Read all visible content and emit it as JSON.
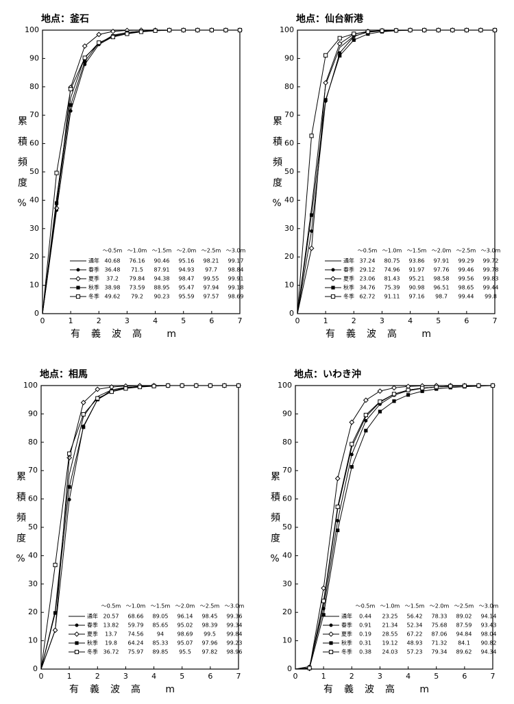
{
  "chart_data": [
    {
      "type": "line",
      "title": "地点：釜石",
      "y_label": "累積頻度%",
      "x_label": "有義波高 m",
      "x": [
        0,
        0.5,
        1,
        1.5,
        2,
        2.5,
        3,
        3.5,
        4,
        4.5,
        5,
        5.5,
        6,
        6.5,
        7
      ],
      "xlim": [
        0,
        7
      ],
      "ylim": [
        0,
        100
      ],
      "xticks": [
        0,
        1,
        2,
        3,
        4,
        5,
        6,
        7
      ],
      "yticks": [
        0,
        10,
        20,
        30,
        40,
        50,
        60,
        70,
        80,
        90,
        100
      ],
      "table_columns": [
        "～0.5m",
        "～1.0m",
        "～1.5m",
        "～2.0m",
        "～2.5m",
        "～3.0m"
      ],
      "series": [
        {
          "name": "通年",
          "color": "#000",
          "marker": "none",
          "values": [
            0,
            40.68,
            76.16,
            90.46,
            95.16,
            98.21,
            99.17,
            99.6,
            99.9,
            100,
            100,
            100,
            100,
            100,
            100
          ]
        },
        {
          "name": "春季",
          "color": "#000",
          "marker": "circle",
          "values": [
            0,
            36.48,
            71.5,
            87.91,
            94.93,
            97.7,
            98.84,
            99.5,
            99.8,
            100,
            100,
            100,
            100,
            100,
            100
          ]
        },
        {
          "name": "夏季",
          "color": "#000",
          "marker": "diamond",
          "values": [
            0,
            37.2,
            79.84,
            94.38,
            98.47,
            99.55,
            99.91,
            100,
            100,
            100,
            100,
            100,
            100,
            100,
            100
          ]
        },
        {
          "name": "秋季",
          "color": "#000",
          "marker": "square",
          "values": [
            0,
            38.98,
            73.59,
            88.95,
            95.47,
            97.94,
            99.18,
            99.6,
            99.9,
            100,
            100,
            100,
            100,
            100,
            100
          ]
        },
        {
          "name": "冬季",
          "color": "#000",
          "marker": "square-open",
          "values": [
            0,
            49.62,
            79.2,
            90.23,
            95.59,
            97.57,
            98.69,
            99.4,
            99.8,
            100,
            100,
            100,
            100,
            100,
            100
          ]
        }
      ]
    },
    {
      "type": "line",
      "title": "地点：仙台新港",
      "y_label": "累積頻度%",
      "x_label": "有義波高 m",
      "x": [
        0,
        0.5,
        1,
        1.5,
        2,
        2.5,
        3,
        3.5,
        4,
        4.5,
        5,
        5.5,
        6,
        6.5,
        7
      ],
      "xlim": [
        0,
        7
      ],
      "ylim": [
        0,
        100
      ],
      "xticks": [
        0,
        1,
        2,
        3,
        4,
        5,
        6,
        7
      ],
      "yticks": [
        0,
        10,
        20,
        30,
        40,
        50,
        60,
        70,
        80,
        90,
        100
      ],
      "table_columns": [
        "～0.5m",
        "～1.0m",
        "～1.5m",
        "～2.0m",
        "～2.5m",
        "～3.0m"
      ],
      "series": [
        {
          "name": "通年",
          "color": "#000",
          "marker": "none",
          "values": [
            0,
            37.24,
            80.75,
            93.86,
            97.91,
            99.29,
            99.72,
            99.9,
            100,
            100,
            100,
            100,
            100,
            100,
            100
          ]
        },
        {
          "name": "春季",
          "color": "#000",
          "marker": "circle",
          "values": [
            0,
            29.12,
            74.96,
            91.97,
            97.76,
            99.46,
            99.78,
            99.9,
            100,
            100,
            100,
            100,
            100,
            100,
            100
          ]
        },
        {
          "name": "夏季",
          "color": "#000",
          "marker": "diamond",
          "values": [
            0,
            23.06,
            81.43,
            95.21,
            98.58,
            99.56,
            99.83,
            99.9,
            100,
            100,
            100,
            100,
            100,
            100,
            100
          ]
        },
        {
          "name": "秋季",
          "color": "#000",
          "marker": "square",
          "values": [
            0,
            34.76,
            75.39,
            90.98,
            96.51,
            98.65,
            99.44,
            99.8,
            100,
            100,
            100,
            100,
            100,
            100,
            100
          ]
        },
        {
          "name": "冬季",
          "color": "#000",
          "marker": "square-open",
          "values": [
            0,
            62.72,
            91.11,
            97.16,
            98.7,
            99.44,
            99.8,
            99.9,
            100,
            100,
            100,
            100,
            100,
            100,
            100
          ]
        }
      ]
    },
    {
      "type": "line",
      "title": "地点：相馬",
      "y_label": "累積頻度%",
      "x_label": "有義波高 m",
      "x": [
        0,
        0.5,
        1,
        1.5,
        2,
        2.5,
        3,
        3.5,
        4,
        4.5,
        5,
        5.5,
        6,
        6.5,
        7
      ],
      "xlim": [
        0,
        7
      ],
      "ylim": [
        0,
        100
      ],
      "xticks": [
        0,
        1,
        2,
        3,
        4,
        5,
        6,
        7
      ],
      "yticks": [
        0,
        10,
        20,
        30,
        40,
        50,
        60,
        70,
        80,
        90,
        100
      ],
      "table_columns": [
        "～0.5m",
        "～1.0m",
        "～1.5m",
        "～2.0m",
        "～2.5m",
        "～3.0m"
      ],
      "series": [
        {
          "name": "通年",
          "color": "#000",
          "marker": "none",
          "values": [
            0,
            20.57,
            68.66,
            89.05,
            96.14,
            98.45,
            99.36,
            99.7,
            99.9,
            100,
            100,
            100,
            100,
            100,
            100
          ]
        },
        {
          "name": "春季",
          "color": "#000",
          "marker": "circle",
          "values": [
            0,
            13.82,
            59.79,
            85.65,
            95.02,
            98.39,
            99.34,
            99.7,
            99.9,
            100,
            100,
            100,
            100,
            100,
            100
          ]
        },
        {
          "name": "夏季",
          "color": "#000",
          "marker": "diamond",
          "values": [
            0,
            13.7,
            74.56,
            94.0,
            98.69,
            99.5,
            99.84,
            100,
            100,
            100,
            100,
            100,
            100,
            100,
            100
          ]
        },
        {
          "name": "秋季",
          "color": "#000",
          "marker": "square",
          "values": [
            0,
            19.8,
            64.24,
            85.33,
            95.07,
            97.96,
            99.23,
            99.6,
            99.9,
            100,
            100,
            100,
            100,
            100,
            100
          ]
        },
        {
          "name": "冬季",
          "color": "#000",
          "marker": "square-open",
          "values": [
            0,
            36.72,
            75.97,
            89.85,
            95.5,
            97.82,
            98.96,
            99.5,
            99.8,
            100,
            100,
            100,
            100,
            100,
            100
          ]
        }
      ]
    },
    {
      "type": "line",
      "title": "地点：いわき沖",
      "y_label": "累積頻度%",
      "x_label": "有義波高 m",
      "x": [
        0,
        0.5,
        1,
        1.5,
        2,
        2.5,
        3,
        3.5,
        4,
        4.5,
        5,
        5.5,
        6,
        6.5,
        7
      ],
      "xlim": [
        0,
        7
      ],
      "ylim": [
        0,
        100
      ],
      "xticks": [
        0,
        1,
        2,
        3,
        4,
        5,
        6,
        7
      ],
      "yticks": [
        0,
        10,
        20,
        30,
        40,
        50,
        60,
        70,
        80,
        90,
        100
      ],
      "table_columns": [
        "～0.5m",
        "～1.0m",
        "～1.5m",
        "～2.0m",
        "～2.5m",
        "～3.0m"
      ],
      "series": [
        {
          "name": "通年",
          "color": "#000",
          "marker": "none",
          "values": [
            0,
            0.44,
            23.25,
            56.42,
            78.33,
            89.02,
            94.14,
            97.0,
            98.4,
            99.1,
            99.5,
            99.8,
            99.9,
            100,
            100
          ]
        },
        {
          "name": "春季",
          "color": "#000",
          "marker": "circle",
          "values": [
            0,
            0.91,
            21.34,
            52.34,
            75.68,
            87.59,
            93.43,
            96.6,
            98.2,
            99.0,
            99.5,
            99.7,
            99.9,
            100,
            100
          ]
        },
        {
          "name": "夏季",
          "color": "#000",
          "marker": "diamond",
          "values": [
            0,
            0.19,
            28.55,
            67.22,
            87.06,
            94.84,
            98.04,
            99.2,
            99.7,
            99.9,
            100,
            100,
            100,
            100,
            100
          ]
        },
        {
          "name": "秋季",
          "color": "#000",
          "marker": "square",
          "values": [
            0,
            0.31,
            19.12,
            48.93,
            71.32,
            84.1,
            90.82,
            94.5,
            96.7,
            98.0,
            98.8,
            99.3,
            99.6,
            99.8,
            100
          ]
        },
        {
          "name": "冬季",
          "color": "#000",
          "marker": "square-open",
          "values": [
            0,
            0.38,
            24.03,
            57.23,
            79.34,
            89.62,
            94.34,
            97.0,
            98.4,
            99.1,
            99.5,
            99.8,
            99.9,
            100,
            100
          ]
        }
      ]
    }
  ]
}
